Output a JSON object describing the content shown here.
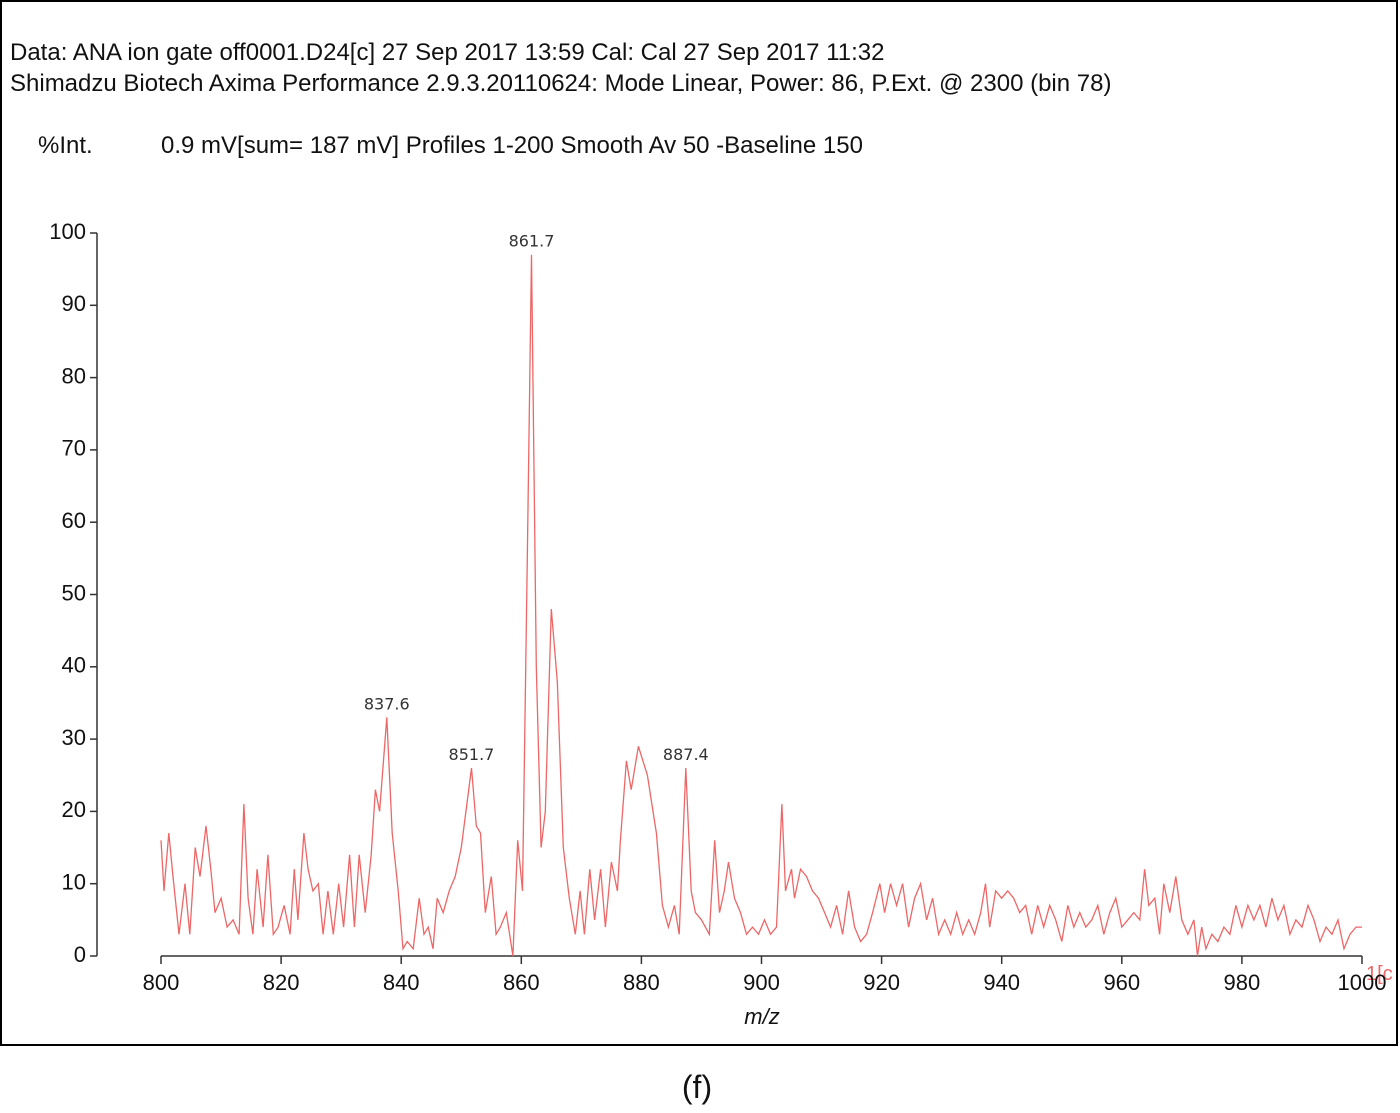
{
  "chart_data": {
    "type": "line",
    "header_lines": [
      "Data: ANA ion gate off0001.D24[c] 27 Sep 2017 13:59 Cal: Cal 27 Sep 2017 11:32",
      "Shimadzu Biotech Axima Performance 2.9.3.20110624: Mode Linear, Power: 86, P.Ext. @ 2300 (bin 78)"
    ],
    "y_label": "%Int.",
    "subtitle": "0.9 mV[sum= 187 mV]  Profiles 1-200 Smooth Av 50 -Baseline 150",
    "x_label": "m/z",
    "trace_label": "1[c",
    "caption": "(f)",
    "color": "#ee6666",
    "xlim": [
      800,
      1000
    ],
    "xticks": [
      800,
      820,
      840,
      860,
      880,
      900,
      920,
      940,
      960,
      980,
      1000
    ],
    "ylim": [
      0,
      100
    ],
    "yticks": [
      0,
      10,
      20,
      30,
      40,
      50,
      60,
      70,
      80,
      90,
      100
    ],
    "peaks": [
      {
        "label": "837.6",
        "x": 837.6,
        "y": 33
      },
      {
        "label": "851.7",
        "x": 851.7,
        "y": 26
      },
      {
        "label": "861.7",
        "x": 861.7,
        "y": 97
      },
      {
        "label": "887.4",
        "x": 887.4,
        "y": 26
      }
    ],
    "x": [
      800,
      800.5,
      801.3,
      802,
      803,
      804,
      804.8,
      805.7,
      806.5,
      807.5,
      808.3,
      809,
      810,
      811,
      812,
      813,
      813.8,
      814.5,
      815.3,
      816,
      817,
      817.8,
      818.7,
      819.5,
      820.5,
      821.5,
      822.2,
      822.8,
      823.8,
      824.5,
      825.3,
      826.2,
      827,
      827.8,
      828.7,
      829.6,
      830.4,
      831.4,
      832.2,
      833,
      834,
      835,
      835.7,
      836.4,
      837.6,
      838.5,
      839.5,
      840.3,
      841,
      842,
      843,
      843.8,
      844.5,
      845.3,
      846,
      847,
      848,
      849,
      850,
      851.7,
      852.5,
      853.2,
      854,
      855,
      855.8,
      856.5,
      857.5,
      858.6,
      859.4,
      860.2,
      861,
      861.7,
      862.5,
      863.3,
      864,
      865,
      866,
      867,
      868,
      869,
      869.8,
      870.5,
      871.4,
      872.2,
      873.2,
      874,
      875,
      876,
      876.5,
      877.5,
      878.3,
      879.5,
      881,
      882.5,
      883.5,
      884.5,
      885.5,
      886.3,
      887.4,
      888.3,
      889,
      890,
      891.3,
      892.2,
      893,
      893.8,
      894.5,
      895.5,
      896.5,
      897.5,
      898.5,
      899.5,
      900.5,
      901.5,
      902.5,
      903.4,
      904,
      905,
      905.5,
      906.5,
      907.5,
      908.5,
      909.5,
      910.5,
      911.5,
      912.5,
      913.5,
      914.5,
      915.5,
      916.5,
      917.5,
      918.5,
      919.7,
      920.5,
      921.5,
      922.5,
      923.5,
      924.5,
      925.5,
      926.5,
      927.5,
      928.5,
      929.5,
      930.5,
      931.5,
      932.5,
      933.5,
      934.5,
      935.5,
      936.5,
      937.3,
      938,
      939,
      940,
      941,
      942,
      943,
      944,
      945,
      946,
      947,
      948,
      949,
      950,
      951,
      952,
      953,
      954,
      955,
      956,
      957,
      958,
      959,
      960,
      961,
      962,
      963,
      963.8,
      964.5,
      965.5,
      966.3,
      967,
      968,
      969,
      970,
      971,
      972,
      972.6,
      973.3,
      974,
      975,
      976,
      977,
      978,
      979,
      980,
      981,
      982,
      983,
      984,
      985,
      986,
      987,
      988,
      989,
      990,
      991,
      992,
      993,
      994,
      995,
      996,
      997,
      998,
      999,
      1000
    ],
    "values": [
      16,
      9,
      17,
      11,
      3,
      10,
      3,
      15,
      11,
      18,
      12,
      6,
      8,
      4,
      5,
      3,
      21,
      8,
      3,
      12,
      4,
      14,
      3,
      4,
      7,
      3,
      12,
      5,
      17,
      12,
      9,
      10,
      3,
      9,
      3,
      10,
      4,
      14,
      4,
      14,
      6,
      14,
      23,
      20,
      33,
      17,
      9,
      1,
      2,
      1,
      8,
      3,
      4,
      1,
      8,
      6,
      9,
      11,
      15,
      26,
      18,
      17,
      6,
      11,
      3,
      4,
      6,
      0,
      16,
      9,
      55,
      97,
      40,
      15,
      20,
      48,
      38,
      15,
      8,
      3,
      9,
      3,
      12,
      5,
      12,
      4,
      13,
      9,
      16,
      27,
      23,
      29,
      25,
      17,
      7,
      4,
      7,
      3,
      26,
      9,
      6,
      5,
      3,
      16,
      6,
      9,
      13,
      8,
      6,
      3,
      4,
      3,
      5,
      3,
      4,
      21,
      9,
      12,
      8,
      12,
      11,
      9,
      8,
      6,
      4,
      7,
      3,
      9,
      4,
      2,
      3,
      6,
      10,
      6,
      10,
      7,
      10,
      4,
      8,
      10,
      5,
      8,
      3,
      5,
      3,
      6,
      3,
      5,
      3,
      6,
      10,
      4,
      9,
      8,
      9,
      8,
      6,
      7,
      3,
      7,
      4,
      7,
      5,
      2,
      7,
      4,
      6,
      4,
      5,
      7,
      3,
      6,
      8,
      4,
      5,
      6,
      5,
      12,
      7,
      8,
      3,
      10,
      6,
      11,
      5,
      3,
      5,
      0,
      4,
      1,
      3,
      2,
      4,
      3,
      7,
      4,
      7,
      5,
      7,
      4,
      8,
      5,
      7,
      3,
      5,
      4,
      7,
      5,
      2,
      4,
      3,
      5,
      1,
      3,
      4,
      4
    ]
  }
}
